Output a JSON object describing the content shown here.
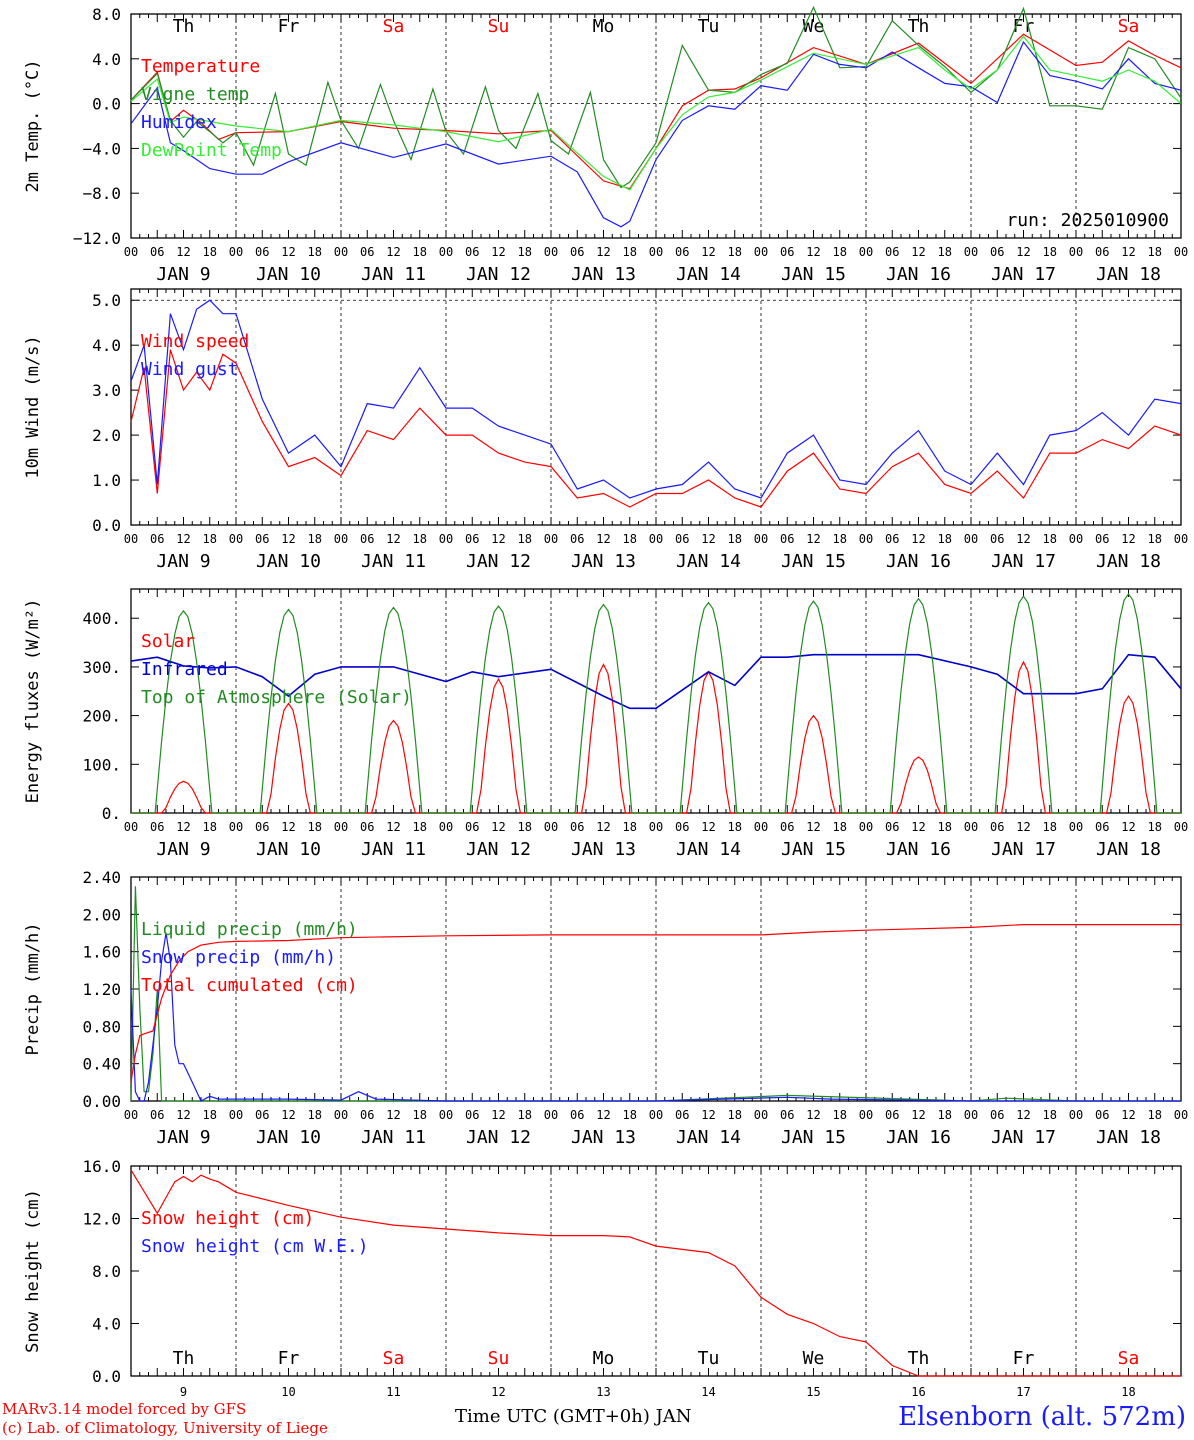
{
  "footer": {
    "credit_line1": "MARv3.14 model forced by GFS",
    "credit_line2": "(c) Lab. of Climatology, University of Liege",
    "time_label": "Time UTC (GMT+0h) JAN",
    "station": "Elsenborn (alt. 572m)"
  },
  "axis_common": {
    "hour_ticks": [
      "00",
      "06",
      "12",
      "18"
    ],
    "final_hour": "00",
    "date_labels": [
      "JAN  9",
      "JAN 10",
      "JAN 11",
      "JAN 12",
      "JAN 13",
      "JAN 14",
      "JAN 15",
      "JAN 16",
      "JAN 17",
      "JAN 18"
    ],
    "weekdays": [
      "Th",
      "Fr",
      "Sa",
      "Su",
      "Mo",
      "Tu",
      "We",
      "Th",
      "Fr",
      "Sa"
    ],
    "weekday_colors": [
      "#000000",
      "#000000",
      "#ff0000",
      "#ff0000",
      "#000000",
      "#000000",
      "#000000",
      "#000000",
      "#000000",
      "#ff0000"
    ],
    "day_numbers": [
      "9",
      "10",
      "11",
      "12",
      "13",
      "14",
      "15",
      "16",
      "17",
      "18"
    ]
  },
  "colors": {
    "red": "#ff0000",
    "green": "#228B22",
    "blue": "#1a1aff",
    "lightgreen": "#33ee33",
    "navy": "#0000cc"
  },
  "chart_data": [
    {
      "type": "line",
      "ylabel": "2m Temp. (°C)",
      "ylim": [
        -12,
        8
      ],
      "yticks": [
        "8.0",
        "4.0",
        "0.0",
        "−4.0",
        "−8.0",
        "−12.0"
      ],
      "ytick_values": [
        8,
        4,
        0,
        -4,
        -8,
        -12
      ],
      "annotation": "run: 2025010900",
      "x_unit": "hours since 2025-01-09 00 UTC",
      "series": [
        {
          "name": "Temperature",
          "color": "red",
          "x": [
            0,
            6,
            9,
            12,
            16,
            20,
            24,
            36,
            48,
            60,
            72,
            84,
            96,
            108,
            114,
            120,
            126,
            132,
            138,
            144,
            156,
            168,
            180,
            192,
            204,
            216,
            222,
            228,
            234,
            240
          ],
          "y": [
            0.3,
            2.8,
            -1.6,
            -0.6,
            -1.7,
            -3.2,
            -2.6,
            -2.5,
            -1.6,
            -2.2,
            -2.4,
            -2.7,
            -2.4,
            -6.9,
            -7.6,
            -4.0,
            -0.2,
            1.2,
            1.3,
            2.3,
            5.0,
            3.5,
            5.4,
            1.8,
            6.2,
            3.4,
            3.7,
            5.6,
            4.3,
            3.2
          ]
        },
        {
          "name": "Vigne temp",
          "color": "green",
          "x": [
            0,
            6,
            9,
            12,
            15,
            18,
            21,
            24,
            28,
            33,
            36,
            40,
            45,
            48,
            52,
            57,
            60,
            64,
            69,
            72,
            76,
            81,
            84,
            88,
            93,
            96,
            100,
            105,
            108,
            112,
            114,
            120,
            126,
            132,
            138,
            144,
            150,
            156,
            162,
            168,
            174,
            180,
            186,
            192,
            198,
            204,
            210,
            216,
            222,
            228,
            234,
            240
          ],
          "y": [
            0.3,
            2.7,
            -1.5,
            -3.0,
            -1.6,
            -2.5,
            -3.5,
            -2.6,
            -5.5,
            0.9,
            -4.5,
            -5.5,
            1.9,
            -1.5,
            -4.0,
            1.7,
            -1.5,
            -5.0,
            1.3,
            -2.5,
            -4.5,
            1.5,
            -2.4,
            -4.0,
            0.9,
            -3.3,
            -4.5,
            1.0,
            -5.0,
            -7.5,
            -7.0,
            -3.5,
            5.2,
            1.2,
            1.0,
            2.6,
            3.6,
            8.6,
            3.2,
            3.3,
            7.4,
            5.2,
            3.3,
            1.0,
            3.0,
            8.5,
            -0.2,
            -0.2,
            -0.5,
            5.0,
            4.0,
            0.5
          ]
        },
        {
          "name": "Humidex",
          "color": "blue",
          "x": [
            0,
            6,
            9,
            12,
            18,
            24,
            30,
            36,
            48,
            60,
            72,
            84,
            96,
            102,
            108,
            112,
            114,
            120,
            126,
            132,
            138,
            144,
            150,
            156,
            162,
            168,
            174,
            180,
            186,
            192,
            198,
            204,
            210,
            216,
            222,
            228,
            234,
            240
          ],
          "y": [
            -1.8,
            1.4,
            -3.5,
            -4.2,
            -5.8,
            -6.3,
            -6.3,
            -5.2,
            -3.5,
            -4.8,
            -3.6,
            -5.4,
            -4.7,
            -6.1,
            -10.2,
            -11.0,
            -10.5,
            -5.0,
            -1.5,
            -0.2,
            -0.5,
            1.6,
            1.2,
            4.4,
            3.5,
            3.2,
            4.6,
            3.2,
            1.8,
            1.5,
            0.1,
            5.5,
            2.5,
            2.0,
            1.3,
            4.0,
            1.8,
            1.2
          ]
        },
        {
          "name": "DewPoint Temp",
          "color": "lightgreen",
          "x": [
            0,
            6,
            9,
            12,
            24,
            36,
            48,
            60,
            72,
            84,
            96,
            108,
            114,
            120,
            126,
            132,
            138,
            144,
            156,
            168,
            180,
            186,
            192,
            198,
            204,
            210,
            216,
            222,
            228,
            234,
            240
          ],
          "y": [
            0.2,
            2.2,
            -1.7,
            -1.2,
            -2.0,
            -2.5,
            -1.5,
            -1.9,
            -2.5,
            -3.4,
            -2.3,
            -6.5,
            -7.7,
            -4.0,
            -1.0,
            0.6,
            1.0,
            2.1,
            4.5,
            3.5,
            5.0,
            3.0,
            1.3,
            3.0,
            6.0,
            3.0,
            2.5,
            2.0,
            3.0,
            2.0,
            0.0
          ]
        }
      ]
    },
    {
      "type": "line",
      "ylabel": "10m Wind (m/s)",
      "ylim": [
        0,
        5.25
      ],
      "yticks": [
        "5.0",
        "4.0",
        "3.0",
        "2.0",
        "1.0",
        "0.0"
      ],
      "ytick_values": [
        5,
        4,
        3,
        2,
        1,
        0
      ],
      "x_unit": "hours since 2025-01-09 00 UTC",
      "series": [
        {
          "name": "Wind speed",
          "color": "red",
          "x": [
            0,
            3,
            6,
            9,
            12,
            15,
            18,
            21,
            24,
            30,
            36,
            42,
            48,
            54,
            60,
            66,
            72,
            78,
            84,
            90,
            96,
            102,
            108,
            114,
            120,
            126,
            132,
            138,
            144,
            150,
            156,
            162,
            168,
            174,
            180,
            186,
            192,
            198,
            204,
            210,
            216,
            222,
            228,
            234,
            240
          ],
          "y": [
            2.3,
            3.5,
            0.7,
            3.9,
            3.0,
            3.4,
            3.0,
            3.8,
            3.6,
            2.3,
            1.3,
            1.5,
            1.1,
            2.1,
            1.9,
            2.6,
            2.0,
            2.0,
            1.6,
            1.4,
            1.3,
            0.6,
            0.7,
            0.4,
            0.7,
            0.7,
            1.0,
            0.6,
            0.4,
            1.2,
            1.6,
            0.8,
            0.7,
            1.3,
            1.6,
            0.9,
            0.7,
            1.2,
            0.6,
            1.6,
            1.6,
            1.9,
            1.7,
            2.2,
            2.0
          ]
        },
        {
          "name": "Wind gust",
          "color": "blue",
          "x": [
            0,
            3,
            6,
            9,
            12,
            15,
            18,
            21,
            24,
            30,
            36,
            42,
            48,
            54,
            60,
            66,
            72,
            78,
            84,
            90,
            96,
            102,
            108,
            114,
            120,
            126,
            132,
            138,
            144,
            150,
            156,
            162,
            168,
            174,
            180,
            186,
            192,
            198,
            204,
            210,
            216,
            222,
            228,
            234,
            240
          ],
          "y": [
            3.2,
            4.0,
            0.9,
            4.7,
            3.9,
            4.8,
            5.0,
            4.7,
            4.7,
            2.8,
            1.6,
            2.0,
            1.3,
            2.7,
            2.6,
            3.5,
            2.6,
            2.6,
            2.2,
            2.0,
            1.8,
            0.8,
            1.0,
            0.6,
            0.8,
            0.9,
            1.4,
            0.8,
            0.6,
            1.6,
            2.0,
            1.0,
            0.9,
            1.6,
            2.1,
            1.2,
            0.9,
            1.6,
            0.9,
            2.0,
            2.1,
            2.5,
            2.0,
            2.8,
            2.7
          ]
        }
      ]
    },
    {
      "type": "line",
      "ylabel": "Energy fluxes (W/m²)",
      "ylim": [
        0,
        460
      ],
      "yticks": [
        "400.",
        "300.",
        "200.",
        "100.",
        "0."
      ],
      "ytick_values": [
        400,
        300,
        200,
        100,
        0
      ],
      "x_unit": "hours since 2025-01-09 00 UTC",
      "series": [
        {
          "name": "Solar",
          "color": "red",
          "daily_peaks": [
            65,
            225,
            190,
            275,
            305,
            290,
            200,
            115,
            310,
            240
          ]
        },
        {
          "name": "Infrared",
          "color": "navy",
          "x": [
            0,
            6,
            12,
            18,
            24,
            30,
            36,
            42,
            48,
            60,
            72,
            78,
            84,
            96,
            108,
            114,
            120,
            132,
            138,
            144,
            150,
            156,
            168,
            180,
            192,
            198,
            204,
            216,
            222,
            228,
            234,
            240
          ],
          "y": [
            312,
            320,
            302,
            298,
            300,
            280,
            240,
            285,
            300,
            300,
            270,
            290,
            280,
            295,
            240,
            215,
            215,
            290,
            262,
            320,
            320,
            325,
            325,
            325,
            300,
            285,
            245,
            245,
            255,
            325,
            320,
            255
          ]
        },
        {
          "name": "Top of Atmosphere (Solar)",
          "color": "green",
          "daily_peaks": [
            415,
            418,
            422,
            425,
            428,
            432,
            435,
            440,
            445,
            450
          ]
        }
      ]
    },
    {
      "type": "line",
      "ylabel": "Precip (mm/h)",
      "ylim": [
        0,
        2.4
      ],
      "yticks": [
        "2.40",
        "2.00",
        "1.60",
        "1.20",
        "0.80",
        "0.40",
        "0.00"
      ],
      "ytick_values": [
        2.4,
        2.0,
        1.6,
        1.2,
        0.8,
        0.4,
        0.0
      ],
      "x_unit": "hours since 2025-01-09 00 UTC",
      "series": [
        {
          "name": "Liquid precip (mm/h)",
          "color": "green",
          "x": [
            0,
            1,
            2,
            3,
            4,
            5,
            6,
            7,
            8,
            9,
            10,
            12,
            24,
            48,
            72,
            96,
            120,
            150,
            192,
            200,
            216,
            240
          ],
          "y": [
            0.0,
            2.3,
            1.0,
            0.1,
            0.1,
            0.5,
            1.2,
            0.0,
            0.0,
            0.0,
            0.0,
            0.0,
            0.0,
            0.0,
            0.0,
            0.0,
            0.0,
            0.06,
            0.0,
            0.03,
            0.0,
            0.0
          ]
        },
        {
          "name": "Snow precip (mm/h)",
          "color": "blue",
          "x": [
            0,
            1,
            2,
            3,
            4,
            5,
            6,
            7,
            8,
            9,
            10,
            11,
            12,
            14,
            16,
            18,
            20,
            24,
            36,
            48,
            52,
            56,
            72,
            96,
            120,
            150,
            160,
            192,
            216,
            240
          ],
          "y": [
            1.2,
            0.1,
            0.0,
            0.0,
            0.2,
            0.6,
            1.0,
            1.5,
            1.8,
            1.5,
            0.6,
            0.4,
            0.4,
            0.2,
            0.0,
            0.05,
            0.02,
            0.02,
            0.02,
            0.01,
            0.1,
            0.02,
            0.0,
            0.0,
            0.0,
            0.04,
            0.02,
            0.0,
            0.0,
            0.0
          ]
        },
        {
          "name": "Total cumulated (cm)",
          "color": "red",
          "x": [
            0,
            1,
            2,
            3,
            5,
            7,
            9,
            11,
            13,
            16,
            20,
            24,
            36,
            48,
            72,
            96,
            120,
            144,
            156,
            168,
            192,
            204,
            216,
            240
          ],
          "y": [
            0.2,
            0.5,
            0.7,
            0.72,
            0.75,
            1.1,
            1.35,
            1.5,
            1.6,
            1.67,
            1.7,
            1.71,
            1.72,
            1.75,
            1.77,
            1.78,
            1.78,
            1.78,
            1.81,
            1.83,
            1.86,
            1.89,
            1.89,
            1.89
          ]
        }
      ]
    },
    {
      "type": "line",
      "ylabel": "Snow height (cm)",
      "ylim": [
        0,
        16
      ],
      "yticks": [
        "16.0",
        "12.0",
        "8.0",
        "4.0",
        "0.0"
      ],
      "ytick_values": [
        16,
        12,
        8,
        4,
        0
      ],
      "x_unit": "hours since 2025-01-09 00 UTC",
      "series": [
        {
          "name": "Snow height (cm)",
          "color": "red",
          "x": [
            0,
            2,
            4,
            6,
            8,
            10,
            12,
            14,
            16,
            18,
            20,
            24,
            36,
            48,
            60,
            72,
            84,
            96,
            108,
            114,
            120,
            132,
            138,
            144,
            150,
            156,
            162,
            168,
            174,
            180,
            186,
            189,
            192,
            216,
            240
          ],
          "y": [
            15.7,
            14.6,
            13.5,
            12.4,
            13.6,
            14.8,
            15.2,
            14.8,
            15.3,
            15.0,
            14.8,
            14.0,
            13.0,
            12.1,
            11.5,
            11.2,
            10.9,
            10.7,
            10.7,
            10.6,
            9.9,
            9.4,
            8.4,
            6.0,
            4.7,
            4.0,
            3.0,
            2.6,
            0.8,
            0.0,
            0.0,
            0.0,
            0.0,
            0.0,
            0.0
          ]
        },
        {
          "name": "Snow height (cm W.E.)",
          "color": "blue",
          "x": [],
          "y": []
        }
      ]
    }
  ]
}
